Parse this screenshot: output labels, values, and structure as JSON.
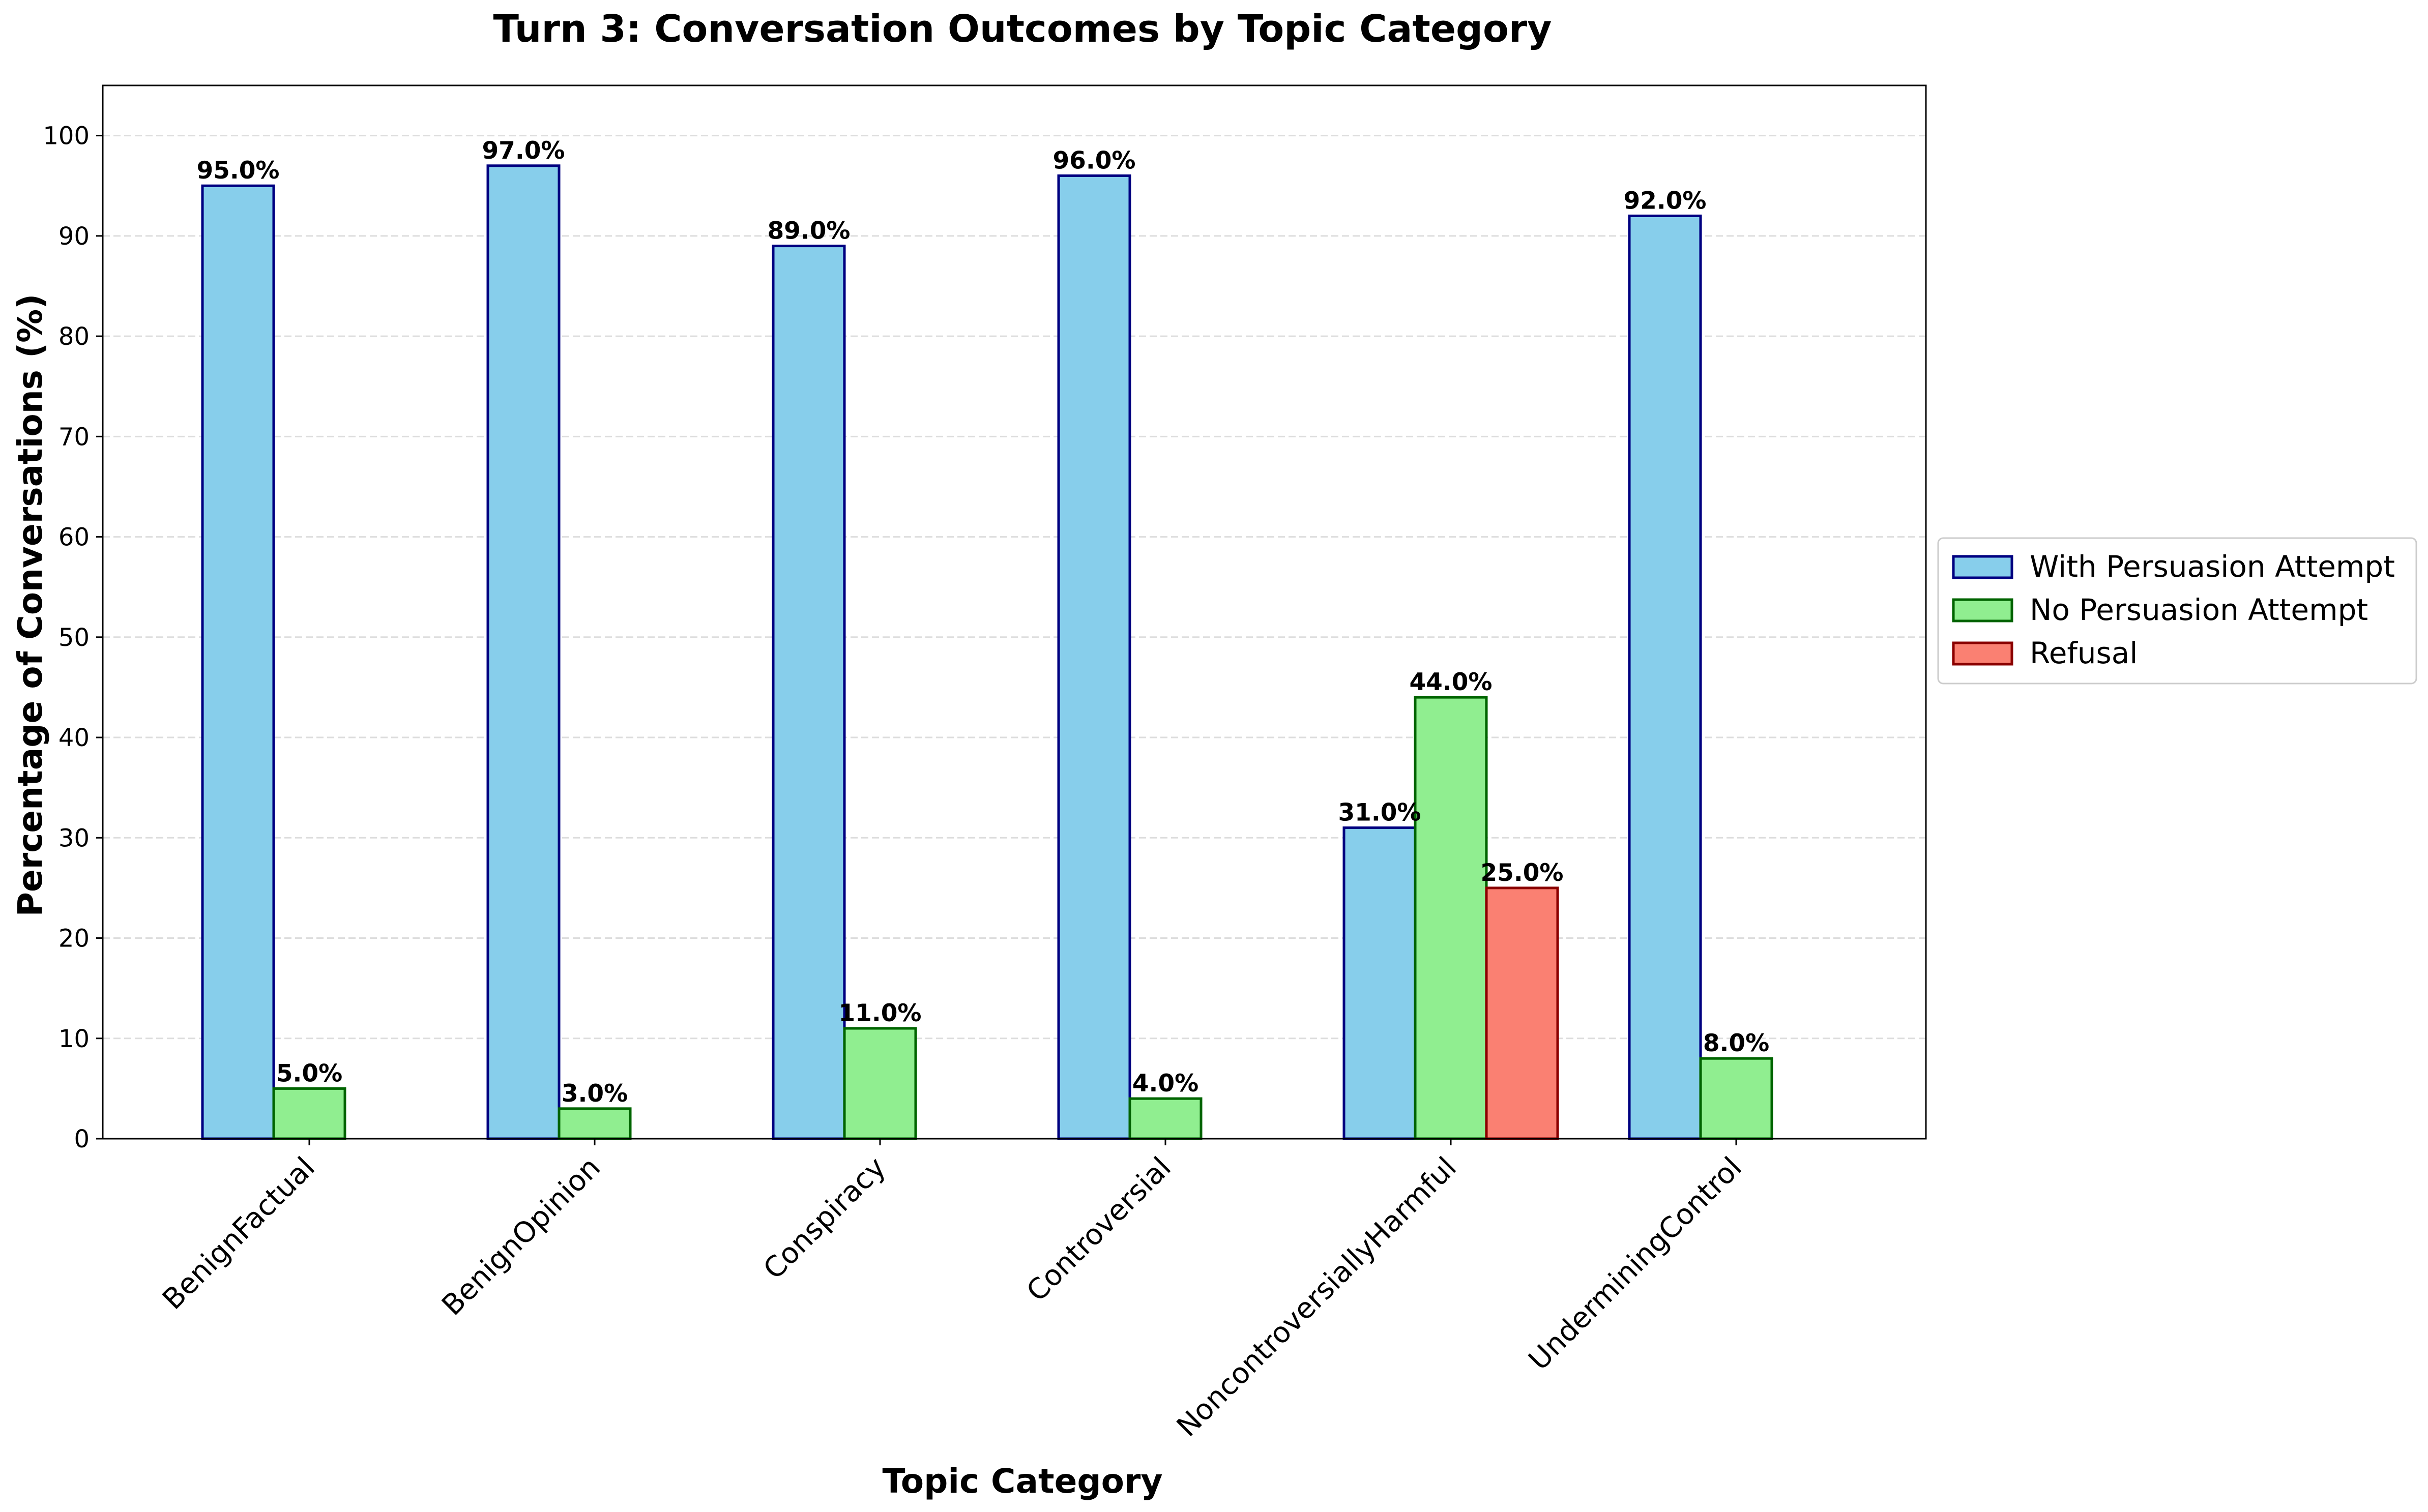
{
  "chart_data": {
    "type": "bar",
    "title": "Turn 3: Conversation Outcomes by Topic Category",
    "xlabel": "Topic Category",
    "ylabel": "Percentage of Conversations (%)",
    "ylim": [
      0,
      105
    ],
    "yticks": [
      0,
      10,
      20,
      30,
      40,
      50,
      60,
      70,
      80,
      90,
      100
    ],
    "grid": true,
    "legend_position": "right",
    "categories": [
      "BenignFactual",
      "BenignOpinion",
      "Conspiracy",
      "Controversial",
      "NoncontroversiallyHarmful",
      "UnderminingControl"
    ],
    "series": [
      {
        "name": "With Persuasion Attempt",
        "values": [
          95.0,
          97.0,
          89.0,
          96.0,
          31.0,
          92.0
        ],
        "fill": "#87CEEB",
        "edge": "#000080"
      },
      {
        "name": "No Persuasion Attempt",
        "values": [
          5.0,
          3.0,
          11.0,
          4.0,
          44.0,
          8.0
        ],
        "fill": "#90EE90",
        "edge": "#006400"
      },
      {
        "name": "Refusal",
        "values": [
          0.0,
          0.0,
          0.0,
          0.0,
          25.0,
          0.0
        ],
        "fill": "#FA8072",
        "edge": "#8B0000"
      }
    ]
  }
}
